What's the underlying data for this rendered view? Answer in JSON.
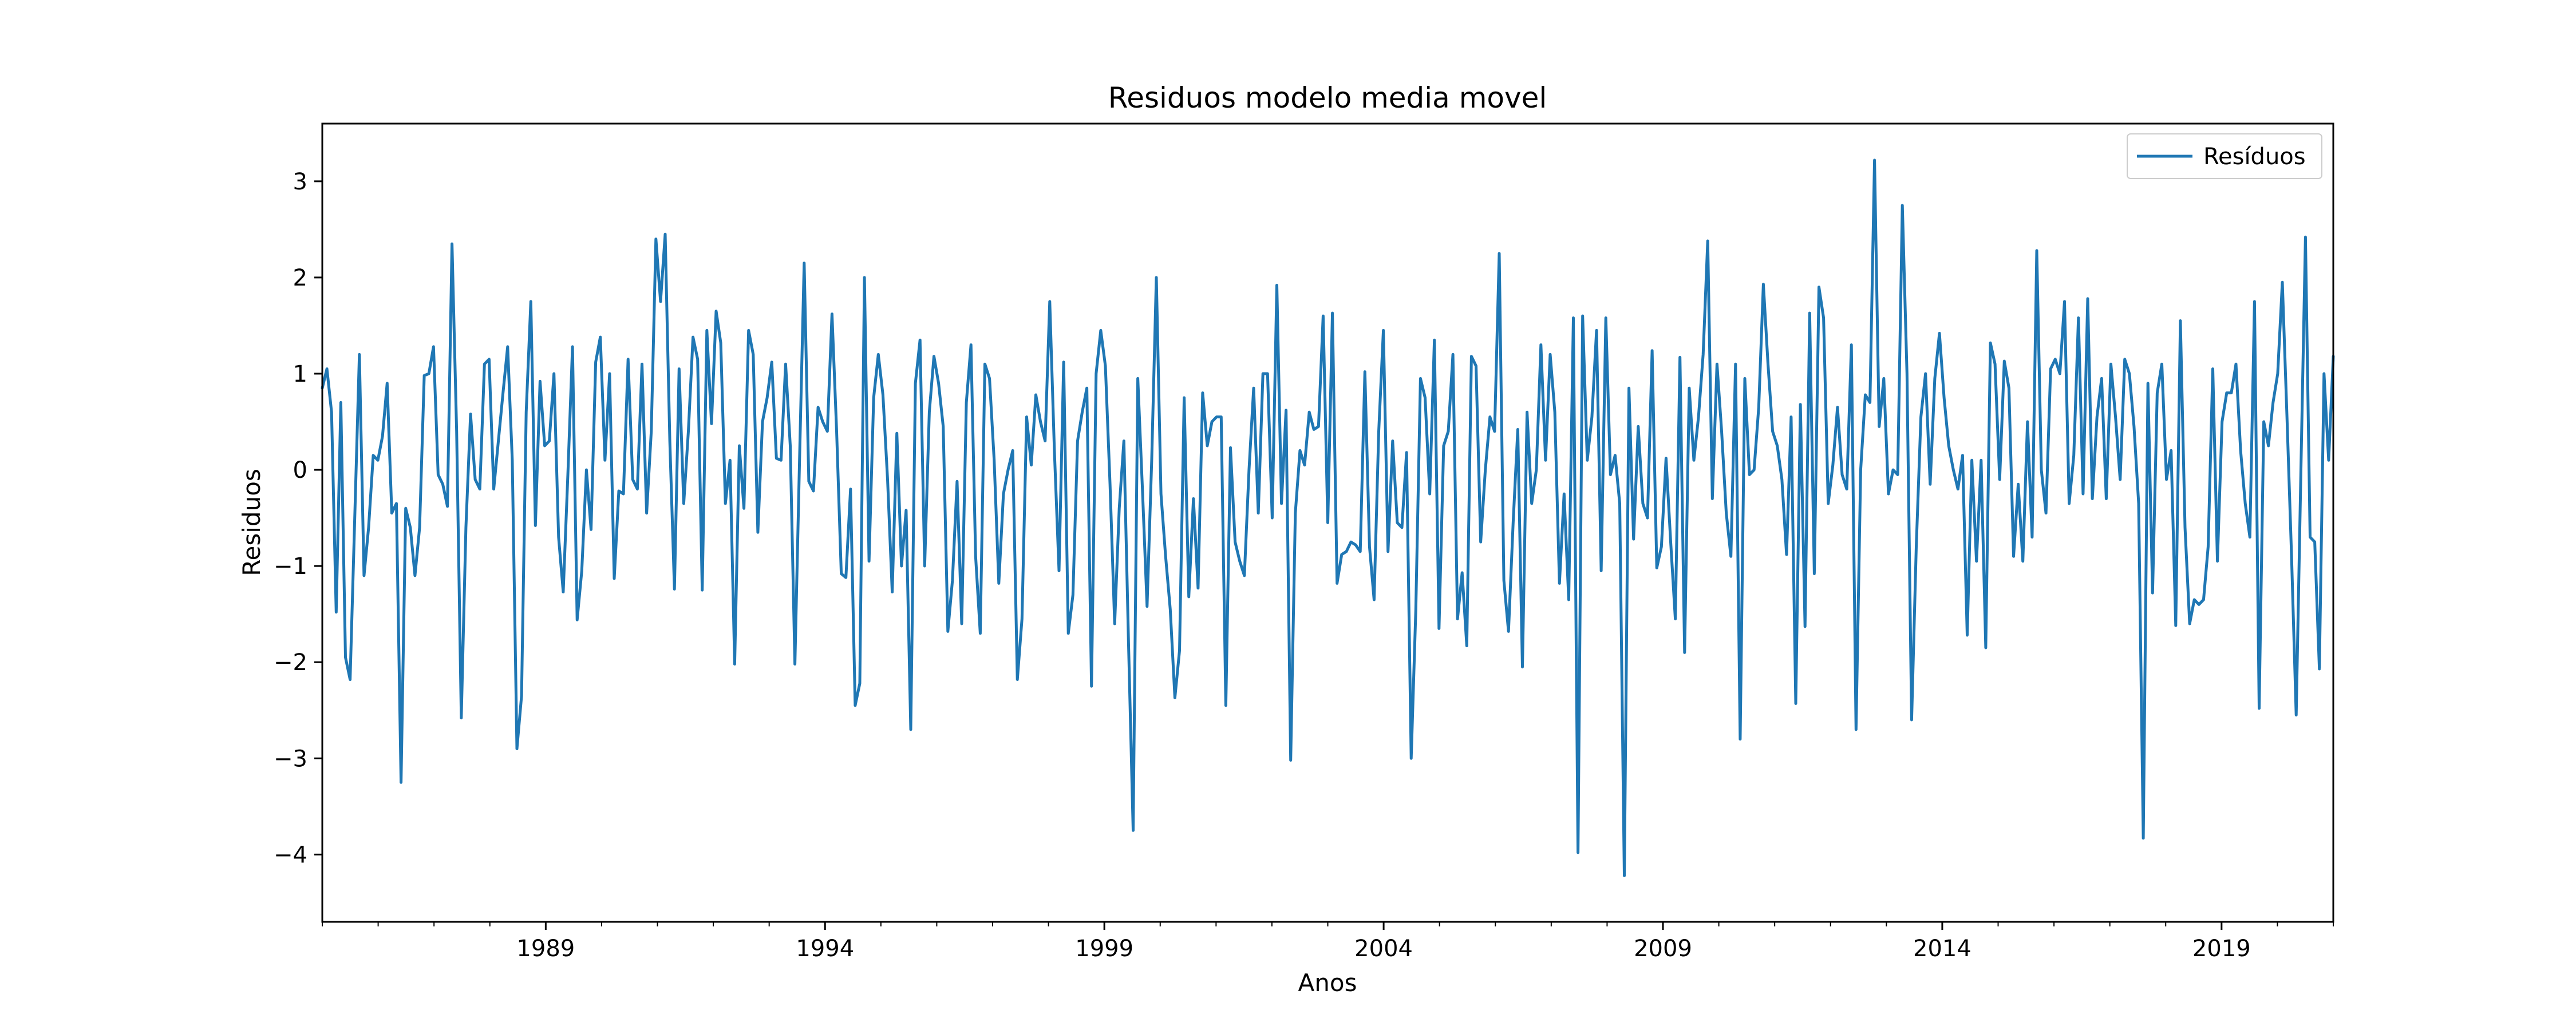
{
  "chart_data": {
    "type": "line",
    "title": "Residuos modelo media movel",
    "xlabel": "Anos",
    "ylabel": "Residuos",
    "x_start": "1985-01",
    "x_end": "2021-01",
    "x_frequency": "monthly",
    "xlim": [
      "1985-01",
      "2021-01"
    ],
    "ylim": [
      -4.7,
      3.6
    ],
    "x_ticks": [
      "1989",
      "1994",
      "1999",
      "2004",
      "2009",
      "2014",
      "2019"
    ],
    "y_ticks": [
      3,
      2,
      1,
      0,
      -1,
      -2,
      -3,
      -4
    ],
    "y_tick_labels": [
      "3",
      "2",
      "1",
      "0",
      "−1",
      "−2",
      "−3",
      "−4"
    ],
    "grid": false,
    "legend": {
      "placement": "top-right",
      "entries": [
        "Resíduos"
      ]
    },
    "series": [
      {
        "name": "Resíduos",
        "color": "#1f77b4",
        "values": [
          0.85,
          1.05,
          0.6,
          -1.48,
          0.7,
          -1.95,
          -2.18,
          -0.5,
          1.2,
          -1.1,
          -0.6,
          0.15,
          0.1,
          0.35,
          0.9,
          -0.45,
          -0.35,
          -3.25,
          -0.4,
          -0.6,
          -1.1,
          -0.6,
          0.98,
          1.0,
          1.28,
          -0.05,
          -0.15,
          -0.38,
          2.35,
          0.4,
          -2.58,
          -0.6,
          0.58,
          -0.1,
          -0.2,
          1.1,
          1.15,
          -0.2,
          0.3,
          0.8,
          1.28,
          0.1,
          -2.9,
          -2.35,
          0.6,
          1.75,
          -0.58,
          0.92,
          0.25,
          0.3,
          1.0,
          -0.7,
          -1.27,
          -0.05,
          1.28,
          -1.56,
          -1.05,
          0.0,
          -0.62,
          1.12,
          1.38,
          0.1,
          1.0,
          -1.13,
          -0.22,
          -0.25,
          1.15,
          -0.1,
          -0.2,
          1.1,
          -0.45,
          0.4,
          2.4,
          1.75,
          2.45,
          0.3,
          -1.24,
          1.05,
          -0.35,
          0.4,
          1.38,
          1.15,
          -1.25,
          1.45,
          0.48,
          1.65,
          1.32,
          -0.35,
          0.1,
          -2.02,
          0.25,
          -0.4,
          1.45,
          1.2,
          -0.65,
          0.5,
          0.75,
          1.12,
          0.12,
          0.1,
          1.1,
          0.25,
          -2.02,
          0.1,
          2.15,
          -0.12,
          -0.22,
          0.65,
          0.5,
          0.4,
          1.62,
          0.4,
          -1.08,
          -1.12,
          -0.2,
          -2.45,
          -2.22,
          2.0,
          -0.95,
          0.75,
          1.2,
          0.78,
          -0.1,
          -1.27,
          0.38,
          -1.0,
          -0.42,
          -2.7,
          0.9,
          1.35,
          -1.0,
          0.6,
          1.18,
          0.9,
          0.45,
          -1.68,
          -1.15,
          -0.12,
          -1.6,
          0.7,
          1.3,
          -0.9,
          -1.7,
          1.1,
          0.95,
          0.1,
          -1.18,
          -0.25,
          0.0,
          0.2,
          -2.18,
          -1.55,
          0.55,
          0.05,
          0.78,
          0.5,
          0.3,
          1.75,
          0.2,
          -1.05,
          1.12,
          -1.7,
          -1.3,
          0.3,
          0.6,
          0.85,
          -2.25,
          1.0,
          1.45,
          1.08,
          -0.15,
          -1.6,
          -0.4,
          0.3,
          -1.8,
          -3.75,
          0.95,
          -0.2,
          -1.42,
          0.1,
          2.0,
          -0.25,
          -0.9,
          -1.45,
          -2.37,
          -1.88,
          0.75,
          -1.32,
          -0.3,
          -1.23,
          0.8,
          0.25,
          0.5,
          0.55,
          0.55,
          -2.45,
          0.23,
          -0.75,
          -0.95,
          -1.1,
          0.0,
          0.85,
          -0.45,
          1.0,
          1.0,
          -0.5,
          1.92,
          -0.35,
          0.62,
          -3.02,
          -0.45,
          0.2,
          0.05,
          0.6,
          0.42,
          0.45,
          1.6,
          -0.55,
          1.63,
          -1.18,
          -0.88,
          -0.85,
          -0.75,
          -0.78,
          -0.85,
          1.02,
          -0.8,
          -1.35,
          0.4,
          1.45,
          -0.85,
          0.3,
          -0.55,
          -0.6,
          0.18,
          -3.0,
          -1.45,
          0.95,
          0.75,
          -0.25,
          1.35,
          -1.65,
          0.25,
          0.4,
          1.2,
          -1.55,
          -1.07,
          -1.83,
          1.18,
          1.08,
          -0.75,
          0.0,
          0.55,
          0.4,
          2.25,
          -1.15,
          -1.68,
          -0.55,
          0.42,
          -2.05,
          0.6,
          -0.35,
          0.0,
          1.3,
          0.1,
          1.2,
          0.6,
          -1.18,
          -0.25,
          -1.35,
          1.58,
          -3.98,
          1.6,
          0.1,
          0.55,
          1.45,
          -1.05,
          1.58,
          -0.05,
          0.15,
          -0.35,
          -4.22,
          0.85,
          -0.72,
          0.45,
          -0.35,
          -0.5,
          1.24,
          -1.02,
          -0.8,
          0.12,
          -0.75,
          -1.55,
          1.17,
          -1.9,
          0.85,
          0.1,
          0.55,
          1.2,
          2.38,
          -0.3,
          1.1,
          0.4,
          -0.45,
          -0.9,
          1.1,
          -2.8,
          0.95,
          -0.05,
          0.0,
          0.65,
          1.93,
          1.1,
          0.4,
          0.25,
          -0.1,
          -0.88,
          0.55,
          -2.43,
          0.68,
          -1.63,
          1.63,
          -1.08,
          1.9,
          1.58,
          -0.35,
          0.05,
          0.65,
          -0.05,
          -0.2,
          1.3,
          -2.7,
          0.0,
          0.78,
          0.7,
          3.22,
          0.45,
          0.95,
          -0.25,
          0.0,
          -0.05,
          2.75,
          1.0,
          -2.6,
          -0.8,
          0.55,
          1.0,
          -0.15,
          0.95,
          1.42,
          0.75,
          0.25,
          0.0,
          -0.2,
          0.15,
          -1.72,
          0.1,
          -0.95,
          0.1,
          -1.85,
          1.32,
          1.1,
          -0.1,
          1.13,
          0.85,
          -0.9,
          -0.15,
          -0.95,
          0.5,
          -0.7,
          2.28,
          0.0,
          -0.45,
          1.05,
          1.15,
          1.0,
          1.75,
          -0.35,
          0.15,
          1.58,
          -0.25,
          1.78,
          -0.3,
          0.55,
          0.95,
          -0.3,
          1.1,
          0.55,
          -0.1,
          1.15,
          1.0,
          0.45,
          -0.35,
          -3.83,
          0.9,
          -1.28,
          0.8,
          1.1,
          -0.1,
          0.2,
          -1.62,
          1.55,
          -0.6,
          -1.6,
          -1.35,
          -1.4,
          -1.35,
          -0.8,
          1.05,
          -0.95,
          0.5,
          0.8,
          0.8,
          1.1,
          0.2,
          -0.35,
          -0.7,
          1.75,
          -2.48,
          0.5,
          0.25,
          0.7,
          1.0,
          1.95,
          0.55,
          -0.9,
          -2.55,
          -0.05,
          2.42,
          -0.7,
          -0.75,
          -2.07,
          1.0,
          0.1,
          1.18
        ]
      }
    ]
  }
}
